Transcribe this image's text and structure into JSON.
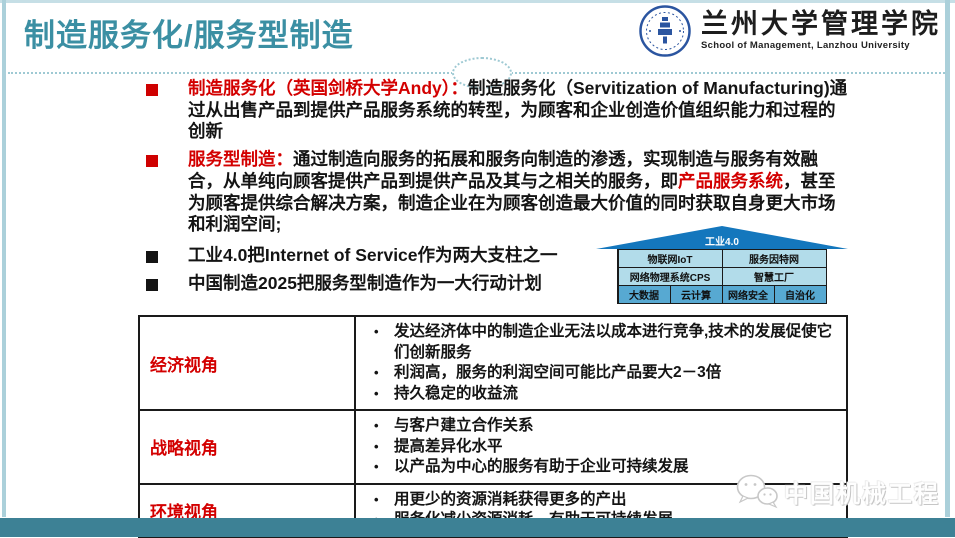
{
  "header": {
    "title": "制造服务化/服务型制造",
    "logo_cn": "兰州大学管理学院",
    "logo_en": "School of Management, Lanzhou University"
  },
  "bullets": [
    {
      "segments": [
        {
          "t": "制造服务化（英国剑桥大学Andy）：",
          "c": "red"
        },
        {
          "t": "制造服务化（Servitization of Manufacturing)通过从出售产品到提供产品服务系统的转型，为顾客和企业创造价值组织能力和过程的创新",
          "c": "dark"
        }
      ]
    },
    {
      "segments": [
        {
          "t": "服务型制造：",
          "c": "red"
        },
        {
          "t": "通过制造向服务的拓展和服务向制造的渗透，实现制造与服务有效融合，从单纯向顾客提供产品到提供产品及其与之相关的服务，即",
          "c": "dark"
        },
        {
          "t": "产品服务系统",
          "c": "red"
        },
        {
          "t": "，甚至为顾客提供综合解决方案，制造企业在为顾客创造最大价值的同时获取自身更大市场和利润空间;",
          "c": "dark"
        }
      ]
    },
    {
      "segments": [
        {
          "t": "工业4.0把Internet of Service作为两大支柱之一",
          "c": "dark"
        }
      ]
    },
    {
      "segments": [
        {
          "t": "中国制造2025把服务型制造作为一大行动计划",
          "c": "dark"
        }
      ]
    }
  ],
  "industry40_house": {
    "roof_label": "工业4.0",
    "row1": [
      "物联网IoT",
      "服务因特网"
    ],
    "row2": [
      "网络物理系统CPS",
      "智慧工厂"
    ],
    "row3": [
      "大数据",
      "云计算",
      "网络安全",
      "自治化"
    ]
  },
  "perspective_table": {
    "rows": [
      {
        "label": "经济视角",
        "items": [
          "发达经济体中的制造企业无法以成本进行竞争,技术的发展促使它们创新服务",
          "利润高，服务的利润空间可能比产品要大2－3倍",
          "持久稳定的收益流"
        ]
      },
      {
        "label": "战略视角",
        "items": [
          "与客户建立合作关系",
          "提高差异化水平",
          "以产品为中心的服务有助于企业可持续发展"
        ]
      },
      {
        "label": "环境视角",
        "items": [
          "用更少的资源消耗获得更多的产出",
          "服务化减少资源消耗，有助于可持续发展"
        ]
      }
    ]
  },
  "watermark": "中国机械工程",
  "colors": {
    "accent_teal": "#3b8fa3",
    "edge_teal": "#abd0da",
    "red": "#d30000",
    "roof_blue": "#1477bd",
    "house_light_blue": "#b2dcea",
    "house_mid_blue": "#57a9d2",
    "footer_teal": "#3d8195"
  }
}
